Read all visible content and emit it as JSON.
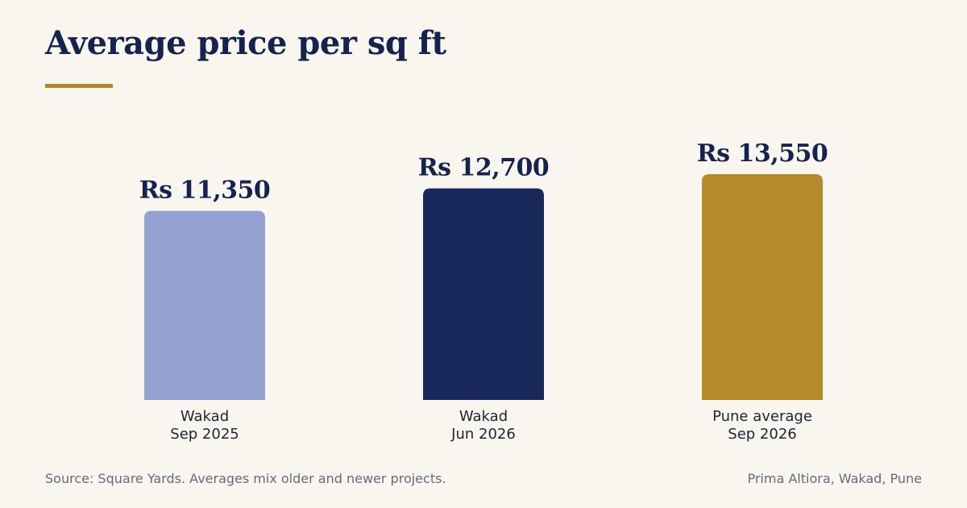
{
  "chart_data": {
    "type": "bar",
    "title": "Average price per sq ft",
    "xlabel": "",
    "ylabel": "",
    "grid": false,
    "legend": "none",
    "categories": [
      [
        "Wakad",
        "Sep 2025"
      ],
      [
        "Wakad",
        "Jun 2026"
      ],
      [
        "Pune average",
        "Sep 2026"
      ]
    ],
    "values": [
      11350,
      12700,
      13550
    ],
    "value_labels": [
      "Rs 11,350",
      "Rs 12,700",
      "Rs 13,550"
    ],
    "colors": [
      "#92a1cf",
      "#18285a",
      "#b48a2b"
    ]
  },
  "footer": {
    "source": "Source: Square Yards. Averages mix older and newer projects.",
    "project": "Prima Altiora, Wakad, Pune"
  },
  "theme": {
    "background": "#f9f6f0",
    "title_color": "#15244f",
    "accent": "#b38a2a"
  }
}
